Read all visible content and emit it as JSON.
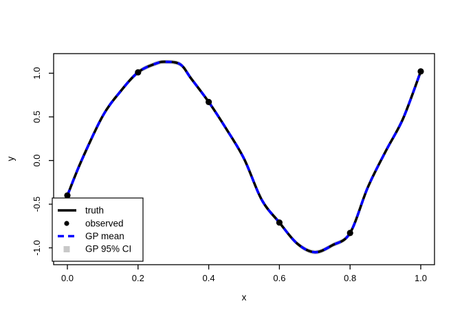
{
  "chart_data": {
    "type": "line",
    "title": "",
    "xlabel": "x",
    "ylabel": "y",
    "xlim": [
      -0.039,
      1.039
    ],
    "ylim": [
      -1.193,
      1.224
    ],
    "x_ticks": {
      "values": [
        0.0,
        0.2,
        0.4,
        0.6,
        0.8,
        1.0
      ],
      "labels": [
        "0.0",
        "0.2",
        "0.4",
        "0.6",
        "0.8",
        "1.0"
      ]
    },
    "y_ticks": {
      "values": [
        -1.0,
        -0.5,
        0.0,
        0.5,
        1.0
      ],
      "labels": [
        "-1.0",
        "-0.5",
        "0.0",
        "0.5",
        "1.0"
      ]
    },
    "grid": false,
    "legend_position": "bottom-left",
    "series": [
      {
        "name": "truth",
        "type": "line",
        "style": "solid",
        "color": "#000000",
        "x": [
          0.0,
          0.04,
          0.1,
          0.15,
          0.2,
          0.25,
          0.28,
          0.32,
          0.35,
          0.4,
          0.45,
          0.5,
          0.55,
          0.6,
          0.65,
          0.7,
          0.75,
          0.8,
          0.85,
          0.9,
          0.95,
          1.0
        ],
        "y": [
          -0.4,
          0.0,
          0.51,
          0.79,
          1.01,
          1.11,
          1.13,
          1.1,
          0.94,
          0.67,
          0.36,
          0.02,
          -0.45,
          -0.71,
          -0.95,
          -1.05,
          -0.97,
          -0.83,
          -0.31,
          0.1,
          0.48,
          1.02
        ]
      },
      {
        "name": "observed",
        "type": "scatter",
        "marker": "filled-circle",
        "color": "#000000",
        "x": [
          0.0,
          0.2,
          0.4,
          0.6,
          0.8,
          1.0
        ],
        "y": [
          -0.4,
          1.01,
          0.67,
          -0.71,
          -0.83,
          1.02
        ]
      },
      {
        "name": "GP mean",
        "type": "line",
        "style": "dashed",
        "color": "#0000ff",
        "equals_series": "truth"
      },
      {
        "name": "GP 95% CI",
        "type": "band",
        "color": "#cdcdcd",
        "center_equals_series": "truth",
        "half_width": 0.025
      }
    ],
    "legend": [
      {
        "label": "truth",
        "symbol": "solid-line",
        "color": "#000000"
      },
      {
        "label": "observed",
        "symbol": "filled-circle",
        "color": "#000000"
      },
      {
        "label": "GP mean",
        "symbol": "dashed-line",
        "color": "#0000ff"
      },
      {
        "label": "GP 95% CI",
        "symbol": "filled-square",
        "color": "#c8c8c8"
      }
    ],
    "colors": {
      "truth": "#000000",
      "observed": "#000000",
      "gp_mean": "#0000ff",
      "ci": "#cdcdcd",
      "ci_legend": "#c8c8c8",
      "box": "#000000"
    }
  }
}
